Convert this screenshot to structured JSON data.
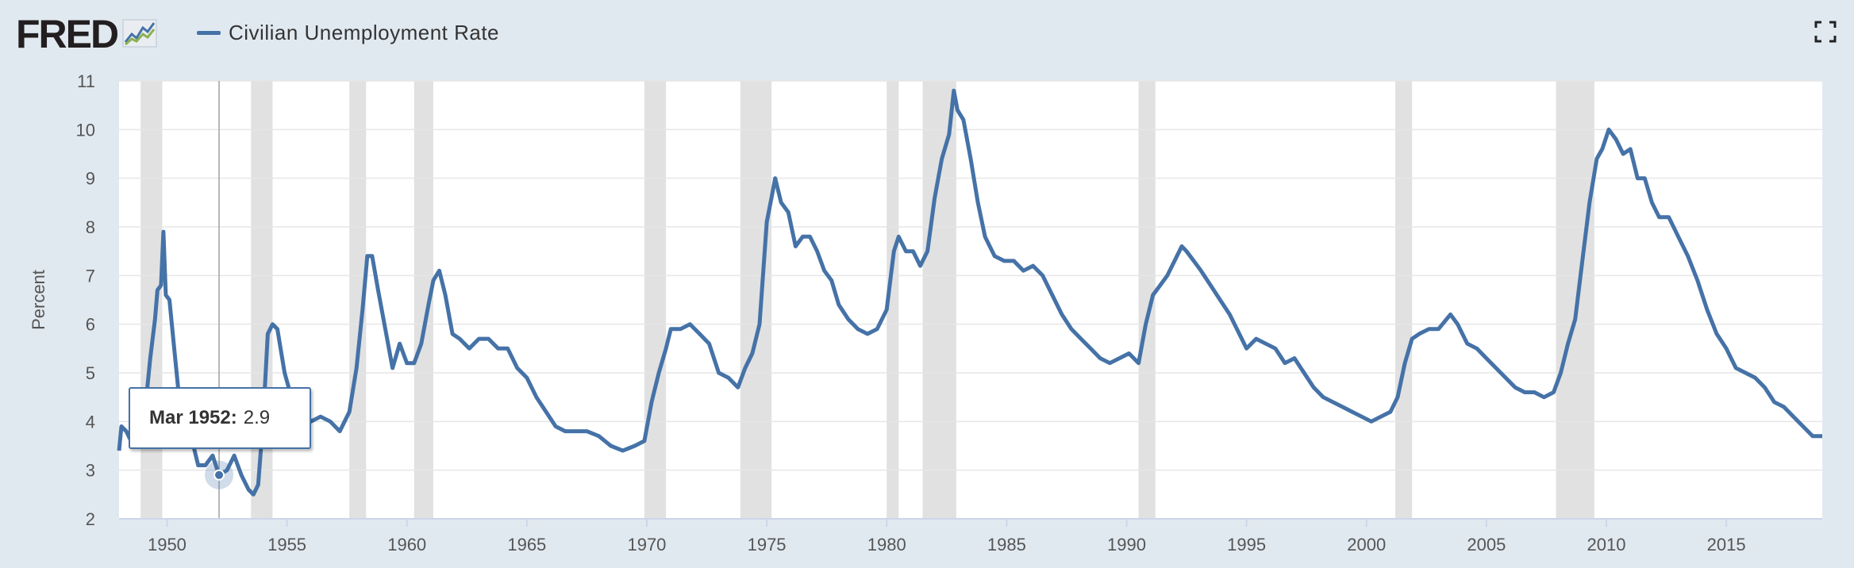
{
  "header": {
    "logo_text": "FRED",
    "series_label": "Civilian Unemployment Rate"
  },
  "colors": {
    "series": "#4572a7",
    "recession": "#e1e1e1",
    "background": "#e1e9f0",
    "plot": "#ffffff"
  },
  "icons": {
    "logo": "fred-graph-icon",
    "fullscreen": "fullscreen-icon"
  },
  "tooltip": {
    "date": "Mar 1952:",
    "value": "2.9"
  },
  "chart_data": {
    "type": "line",
    "title": "",
    "xlabel": "",
    "ylabel": "Percent",
    "xlim": [
      1948.0,
      2019.0
    ],
    "ylim": [
      2,
      11
    ],
    "yticks": [
      2,
      3,
      4,
      5,
      6,
      7,
      8,
      9,
      10,
      11
    ],
    "xticks": [
      1950,
      1955,
      1960,
      1965,
      1970,
      1975,
      1980,
      1985,
      1990,
      1995,
      2000,
      2005,
      2010,
      2015
    ],
    "grid": "horizontal",
    "highlight_point": {
      "x": 1952.17,
      "y": 2.9,
      "label": "Mar 1952"
    },
    "recessions": [
      [
        1948.9,
        1949.8
      ],
      [
        1953.5,
        1954.4
      ],
      [
        1957.6,
        1958.3
      ],
      [
        1960.3,
        1961.1
      ],
      [
        1969.9,
        1970.8
      ],
      [
        1973.9,
        1975.2
      ],
      [
        1980.0,
        1980.5
      ],
      [
        1981.5,
        1982.9
      ],
      [
        1990.5,
        1991.2
      ],
      [
        2001.2,
        2001.9
      ],
      [
        2007.9,
        2009.5
      ]
    ],
    "series": [
      {
        "name": "Civilian Unemployment Rate",
        "x": [
          1948.0,
          1948.1,
          1948.3,
          1948.5,
          1948.7,
          1948.9,
          1949.1,
          1949.3,
          1949.5,
          1949.6,
          1949.75,
          1949.85,
          1949.95,
          1950.1,
          1950.3,
          1950.5,
          1950.7,
          1951.0,
          1951.3,
          1951.6,
          1951.9,
          1952.17,
          1952.5,
          1952.8,
          1953.1,
          1953.4,
          1953.6,
          1953.8,
          1954.0,
          1954.2,
          1954.4,
          1954.6,
          1954.9,
          1955.3,
          1955.7,
          1956.0,
          1956.4,
          1956.8,
          1957.2,
          1957.6,
          1957.9,
          1958.15,
          1958.35,
          1958.55,
          1958.8,
          1959.1,
          1959.4,
          1959.7,
          1960.0,
          1960.3,
          1960.6,
          1960.9,
          1961.1,
          1961.35,
          1961.6,
          1961.9,
          1962.2,
          1962.6,
          1963.0,
          1963.4,
          1963.8,
          1964.2,
          1964.6,
          1965.0,
          1965.4,
          1965.8,
          1966.2,
          1966.6,
          1967.0,
          1967.5,
          1968.0,
          1968.5,
          1969.0,
          1969.5,
          1969.9,
          1970.2,
          1970.5,
          1970.8,
          1971.0,
          1971.4,
          1971.8,
          1972.2,
          1972.6,
          1973.0,
          1973.4,
          1973.8,
          1974.1,
          1974.4,
          1974.7,
          1975.0,
          1975.2,
          1975.35,
          1975.6,
          1975.9,
          1976.2,
          1976.5,
          1976.8,
          1977.1,
          1977.4,
          1977.7,
          1978.0,
          1978.4,
          1978.8,
          1979.2,
          1979.6,
          1980.0,
          1980.3,
          1980.5,
          1980.8,
          1981.1,
          1981.4,
          1981.7,
          1982.0,
          1982.3,
          1982.6,
          1982.8,
          1982.95,
          1983.2,
          1983.5,
          1983.8,
          1984.1,
          1984.5,
          1984.9,
          1985.3,
          1985.7,
          1986.1,
          1986.5,
          1986.9,
          1987.3,
          1987.7,
          1988.1,
          1988.5,
          1988.9,
          1989.3,
          1989.7,
          1990.1,
          1990.5,
          1990.8,
          1991.1,
          1991.4,
          1991.7,
          1992.0,
          1992.3,
          1992.5,
          1992.8,
          1993.1,
          1993.5,
          1993.9,
          1994.3,
          1994.7,
          1995.0,
          1995.4,
          1995.8,
          1996.2,
          1996.6,
          1997.0,
          1997.4,
          1997.8,
          1998.2,
          1998.6,
          1999.0,
          1999.4,
          1999.8,
          2000.2,
          2000.6,
          2001.0,
          2001.3,
          2001.6,
          2001.9,
          2002.2,
          2002.6,
          2003.0,
          2003.5,
          2003.8,
          2004.2,
          2004.6,
          2005.0,
          2005.4,
          2005.8,
          2006.2,
          2006.6,
          2007.0,
          2007.4,
          2007.8,
          2008.1,
          2008.4,
          2008.7,
          2009.0,
          2009.3,
          2009.6,
          2009.83,
          2010.1,
          2010.4,
          2010.7,
          2011.0,
          2011.3,
          2011.6,
          2011.9,
          2012.2,
          2012.6,
          2013.0,
          2013.4,
          2013.8,
          2014.2,
          2014.6,
          2015.0,
          2015.4,
          2015.8,
          2016.2,
          2016.6,
          2017.0,
          2017.4,
          2017.8,
          2018.2,
          2018.6,
          2019.0
        ],
        "values": [
          3.4,
          3.9,
          3.8,
          3.6,
          3.8,
          4.0,
          4.3,
          5.3,
          6.1,
          6.7,
          6.8,
          7.9,
          6.6,
          6.5,
          5.5,
          4.5,
          4.3,
          3.7,
          3.1,
          3.1,
          3.3,
          2.9,
          3.0,
          3.3,
          2.9,
          2.6,
          2.5,
          2.7,
          4.0,
          5.8,
          6.0,
          5.9,
          5.0,
          4.3,
          4.2,
          4.0,
          4.1,
          4.0,
          3.8,
          4.2,
          5.1,
          6.3,
          7.4,
          7.4,
          6.7,
          5.9,
          5.1,
          5.6,
          5.2,
          5.2,
          5.6,
          6.4,
          6.9,
          7.1,
          6.6,
          5.8,
          5.7,
          5.5,
          5.7,
          5.7,
          5.5,
          5.5,
          5.1,
          4.9,
          4.5,
          4.2,
          3.9,
          3.8,
          3.8,
          3.8,
          3.7,
          3.5,
          3.4,
          3.5,
          3.6,
          4.4,
          5.0,
          5.5,
          5.9,
          5.9,
          6.0,
          5.8,
          5.6,
          5.0,
          4.9,
          4.7,
          5.1,
          5.4,
          6.0,
          8.1,
          8.6,
          9.0,
          8.5,
          8.3,
          7.6,
          7.8,
          7.8,
          7.5,
          7.1,
          6.9,
          6.4,
          6.1,
          5.9,
          5.8,
          5.9,
          6.3,
          7.5,
          7.8,
          7.5,
          7.5,
          7.2,
          7.5,
          8.6,
          9.4,
          9.9,
          10.8,
          10.4,
          10.2,
          9.4,
          8.5,
          7.8,
          7.4,
          7.3,
          7.3,
          7.1,
          7.2,
          7.0,
          6.6,
          6.2,
          5.9,
          5.7,
          5.5,
          5.3,
          5.2,
          5.3,
          5.4,
          5.2,
          6.0,
          6.6,
          6.8,
          7.0,
          7.3,
          7.6,
          7.5,
          7.3,
          7.1,
          6.8,
          6.5,
          6.2,
          5.8,
          5.5,
          5.7,
          5.6,
          5.5,
          5.2,
          5.3,
          5.0,
          4.7,
          4.5,
          4.4,
          4.3,
          4.2,
          4.1,
          4.0,
          4.1,
          4.2,
          4.5,
          5.2,
          5.7,
          5.8,
          5.9,
          5.9,
          6.2,
          6.0,
          5.6,
          5.5,
          5.3,
          5.1,
          4.9,
          4.7,
          4.6,
          4.6,
          4.5,
          4.6,
          5.0,
          5.6,
          6.1,
          7.3,
          8.5,
          9.4,
          9.6,
          10.0,
          9.8,
          9.5,
          9.6,
          9.0,
          9.0,
          8.5,
          8.2,
          8.2,
          7.8,
          7.4,
          6.9,
          6.3,
          5.8,
          5.5,
          5.1,
          5.0,
          4.9,
          4.7,
          4.4,
          4.3,
          4.1,
          3.9,
          3.7,
          3.7
        ]
      }
    ]
  }
}
